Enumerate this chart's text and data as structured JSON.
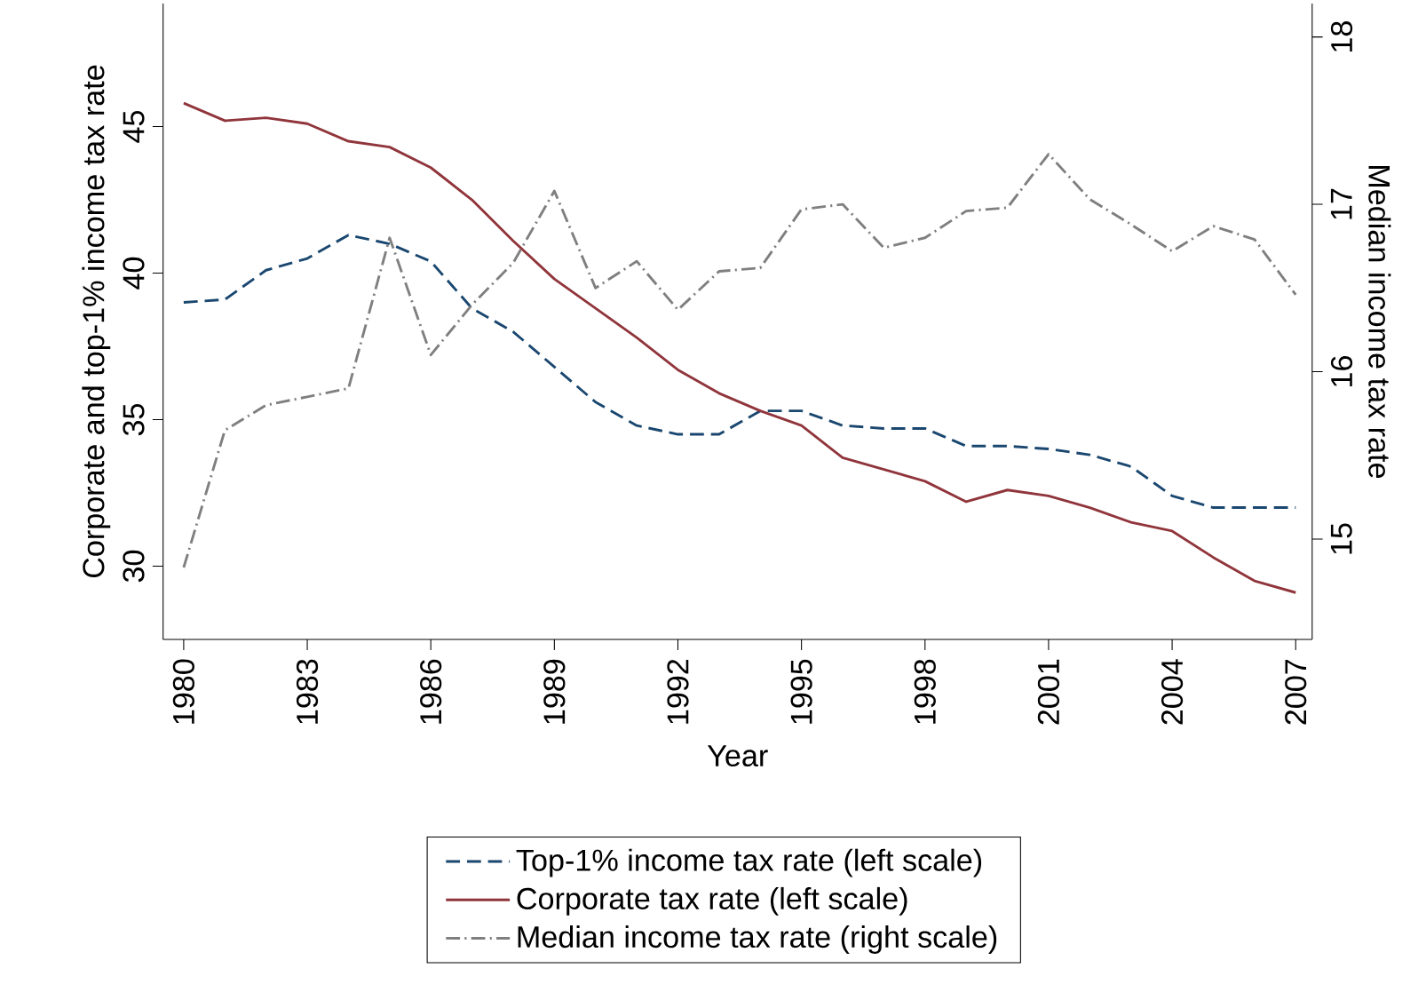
{
  "chart_data": {
    "type": "line",
    "xlabel": "Year",
    "ylabel": "Corporate and top-1% income tax rate",
    "y2label": "Median income tax rate",
    "x": [
      1980,
      1981,
      1982,
      1983,
      1984,
      1985,
      1986,
      1987,
      1988,
      1989,
      1990,
      1991,
      1992,
      1993,
      1994,
      1995,
      1996,
      1997,
      1998,
      1999,
      2000,
      2001,
      2002,
      2003,
      2004,
      2005,
      2006,
      2007
    ],
    "series": [
      {
        "name": "Top-1% income tax rate (left scale)",
        "color": "#1a476f",
        "line_style": "dashed",
        "values": [
          39.0,
          39.1,
          40.1,
          40.5,
          41.3,
          41.0,
          40.4,
          38.8,
          38.0,
          36.8,
          35.6,
          34.8,
          34.5,
          34.5,
          35.3,
          35.3,
          34.8,
          34.7,
          34.7,
          34.1,
          34.1,
          34.0,
          33.8,
          33.4,
          32.4,
          32.0,
          32.0,
          32.0
        ]
      },
      {
        "name": "Corporate tax rate (left scale)",
        "color": "#90353b",
        "line_style": "solid",
        "values": [
          45.8,
          45.2,
          45.3,
          45.1,
          44.5,
          44.3,
          43.6,
          42.5,
          41.1,
          39.8,
          38.8,
          37.8,
          36.7,
          35.9,
          35.3,
          34.8,
          33.7,
          33.3,
          32.9,
          32.2,
          32.6,
          32.4,
          32.0,
          31.5,
          31.2,
          30.3,
          29.5,
          29.1
        ]
      },
      {
        "name": "Median income tax rate (right scale)",
        "color": "#7f7f7f",
        "line_style": "dashdotted",
        "axis": "y2",
        "values": [
          14.83,
          15.65,
          15.8,
          15.85,
          15.9,
          16.8,
          16.1,
          16.4,
          16.65,
          17.08,
          16.5,
          16.66,
          16.37,
          16.6,
          16.62,
          16.97,
          17.0,
          16.74,
          16.8,
          16.96,
          16.98,
          17.3,
          17.03,
          16.88,
          16.72,
          16.87,
          16.79,
          16.46
        ]
      }
    ],
    "xlim": [
      1979.5,
      2007.4
    ],
    "xticks": [
      1980,
      1983,
      1986,
      1989,
      1992,
      1995,
      1998,
      2001,
      2004,
      2007
    ],
    "ylim": [
      27.5,
      49.2
    ],
    "yticks": [
      30,
      35,
      40,
      45
    ],
    "y2lim": [
      14.4,
      18.2
    ],
    "y2ticks": [
      15,
      16,
      17,
      18
    ],
    "grid": false,
    "legend": "bottom",
    "marker": "none"
  }
}
